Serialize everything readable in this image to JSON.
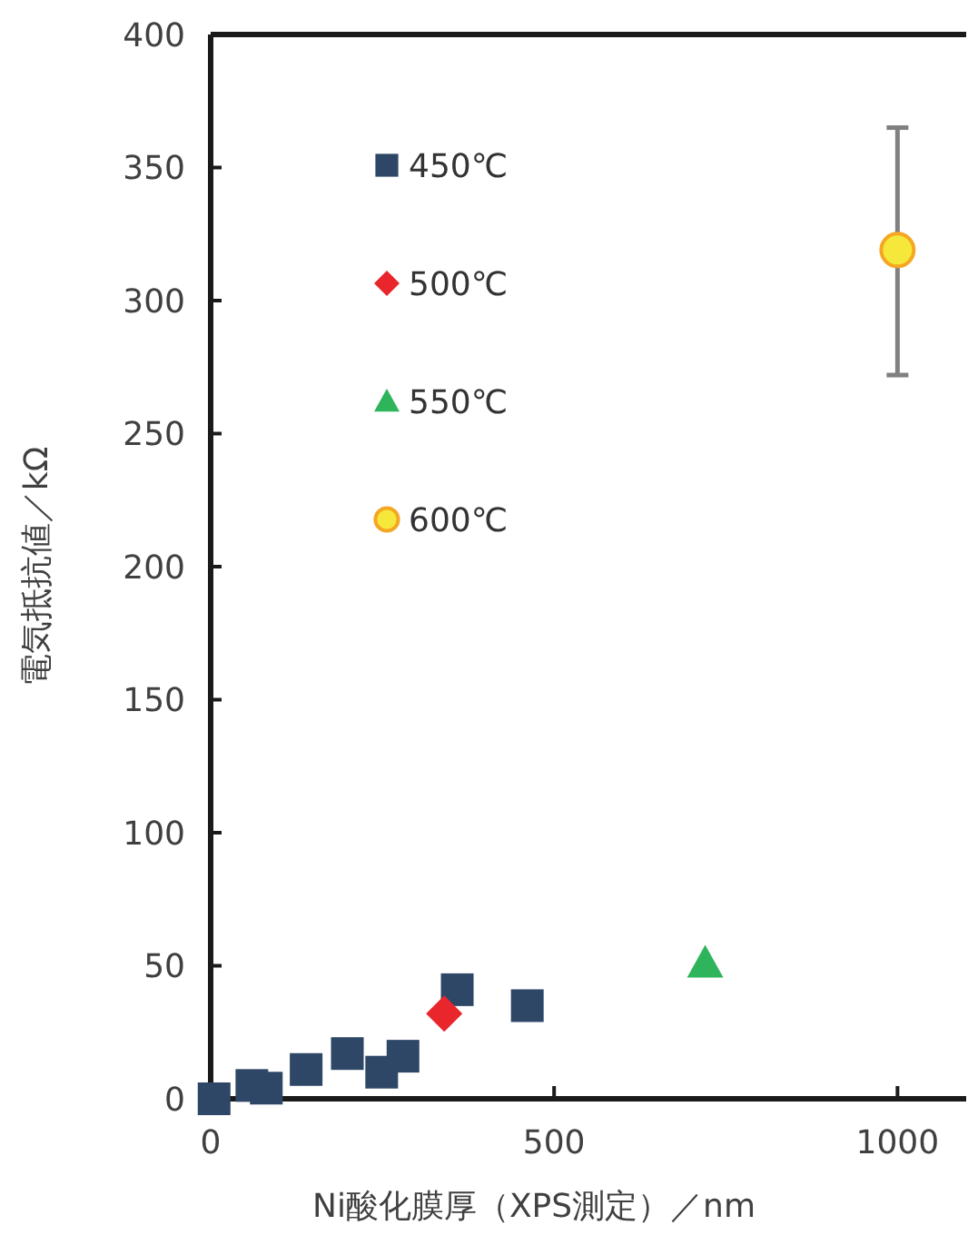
{
  "chart_data": {
    "type": "scatter",
    "xlabel": "Ni酸化膜厚（XPS測定）／nm",
    "ylabel": "電気抵抗値／kΩ",
    "xlim": [
      0,
      1100
    ],
    "xticks": [
      0,
      500,
      1000
    ],
    "ylim": [
      0,
      400
    ],
    "yticks": [
      0,
      50,
      100,
      150,
      200,
      250,
      300,
      350,
      400
    ],
    "legend": "top left",
    "grid": false,
    "series": [
      {
        "name": "450℃",
        "color": "#2e4766",
        "marker": "square",
        "x": [
          5,
          60,
          81,
          139,
          199,
          249,
          280,
          359,
          461
        ],
        "values": [
          0,
          5,
          4,
          11,
          17,
          10,
          16,
          41,
          35
        ]
      },
      {
        "name": "500℃",
        "color": "#e8262b",
        "marker": "diamond",
        "x": [
          340
        ],
        "values": [
          32
        ]
      },
      {
        "name": "550℃",
        "color": "#2eb45a",
        "marker": "triangle",
        "x": [
          720
        ],
        "values": [
          51
        ]
      },
      {
        "name": "600℃",
        "color": "#f5e83a",
        "marker": "circle",
        "x": [
          1000
        ],
        "values": [
          319
        ],
        "errors": [
          [
            272,
            365
          ]
        ]
      }
    ]
  }
}
